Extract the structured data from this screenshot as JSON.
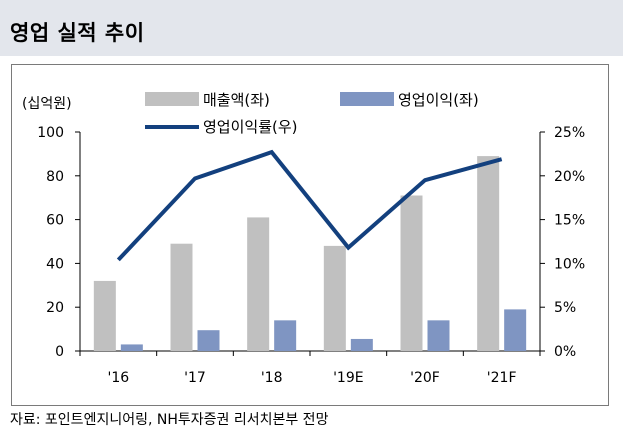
{
  "header": {
    "title": "영업 실적 추이"
  },
  "footer": {
    "source": "자료: 포인트엔지니어링, NH투자증권 리서치본부 전망"
  },
  "colors": {
    "revenue": "#c0c0c0",
    "op_income": "#7f95c2",
    "margin_line": "#13407e",
    "title_bg": "#e3e6ec"
  },
  "chart_data": {
    "type": "bar",
    "categories": [
      "'16",
      "'17",
      "'18",
      "'19E",
      "'20F",
      "'21F"
    ],
    "y_unit_label": "(십억원)",
    "ylim": [
      0,
      100
    ],
    "yticks": [
      0,
      20,
      40,
      60,
      80,
      100
    ],
    "y2lim": [
      0,
      25
    ],
    "y2ticks": [
      "0%",
      "5%",
      "10%",
      "15%",
      "20%",
      "25%"
    ],
    "y2tick_values": [
      0,
      5,
      10,
      15,
      20,
      25
    ],
    "legend_position": "top",
    "grid": false,
    "series": [
      {
        "name": "매출액(좌)",
        "type": "bar",
        "axis": "left",
        "values": [
          32,
          49,
          61,
          48,
          71,
          89
        ]
      },
      {
        "name": "영업이익(좌)",
        "type": "bar",
        "axis": "left",
        "values": [
          3,
          9.5,
          14,
          5.5,
          14,
          19
        ]
      },
      {
        "name": "영업이익률(우)",
        "type": "line",
        "axis": "right",
        "values": [
          10.4,
          19.7,
          22.7,
          11.8,
          19.5,
          21.9
        ]
      }
    ]
  }
}
